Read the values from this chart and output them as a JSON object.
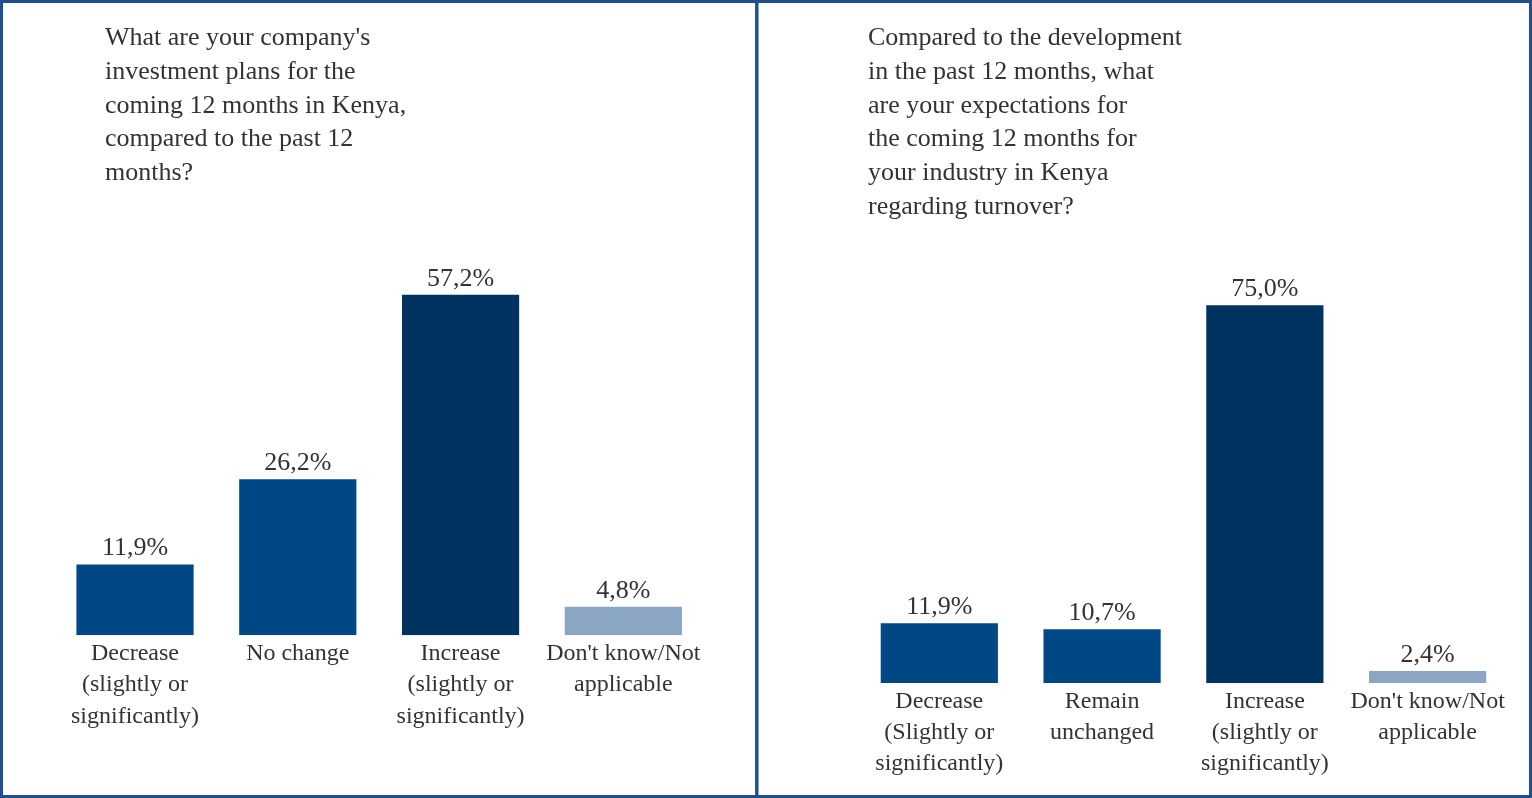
{
  "chart_data": [
    {
      "type": "bar",
      "title": "What are your company's investment plans for the coming 12 months in Kenya, compared to the past 12 months?",
      "categories": [
        "Decrease (slightly or significantly)",
        "No change",
        "Increase (slightly or significantly)",
        "Don't know/Not applicable"
      ],
      "values": [
        11.9,
        26.2,
        57.2,
        4.8
      ],
      "colors": [
        "#004785",
        "#004785",
        "#00335f",
        "#8aa6c4"
      ],
      "value_labels": [
        "11,9%",
        "26,2%",
        "57,2%",
        "4,8%"
      ]
    },
    {
      "type": "bar",
      "title": "Compared to the development in the past 12 months, what are your expectations for the coming 12 months for your industry in Kenya regarding turnover?",
      "categories": [
        "Decrease (Slightly or significantly)",
        "Remain unchanged",
        "Increase (slightly or significantly)",
        "Don't know/Not applicable"
      ],
      "values": [
        11.9,
        10.7,
        75.0,
        2.4
      ],
      "colors": [
        "#004785",
        "#004785",
        "#00335f",
        "#8aa6c4"
      ],
      "value_labels": [
        "11,9%",
        "10,7%",
        "75,0%",
        "2,4%"
      ]
    }
  ]
}
